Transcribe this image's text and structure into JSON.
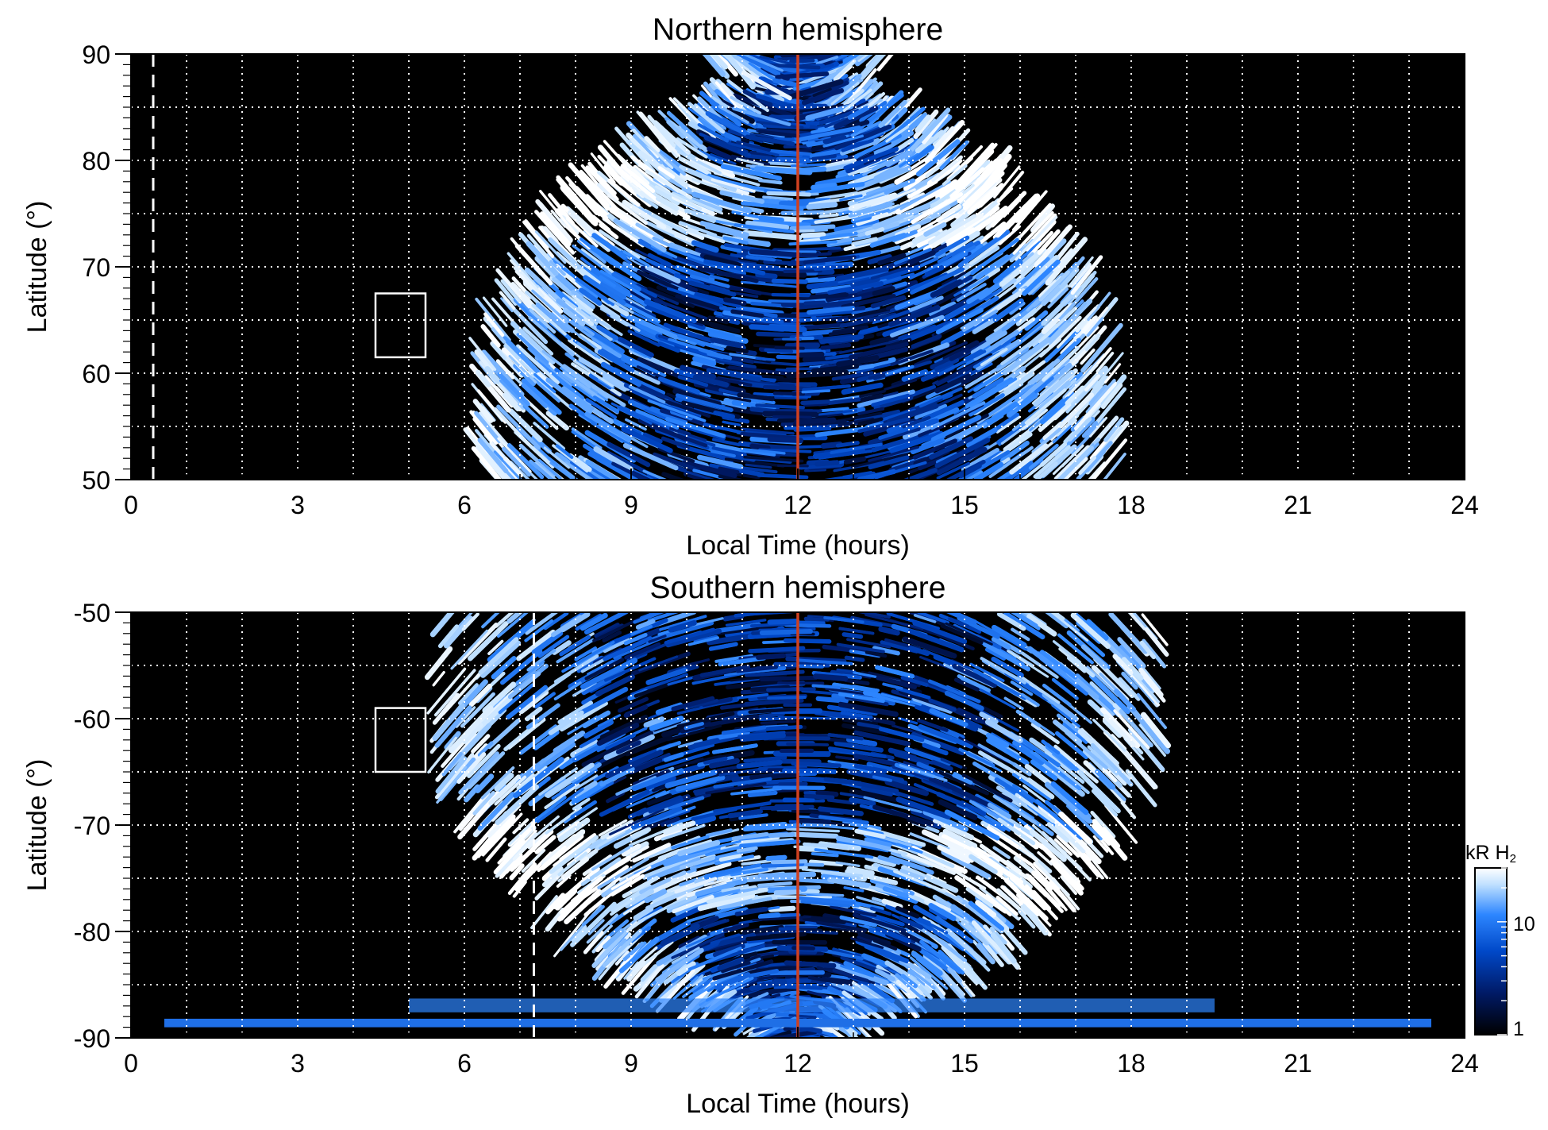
{
  "chart_data": [
    {
      "type": "heatmap",
      "title": "Northern hemisphere",
      "xlabel": "Local Time (hours)",
      "ylabel": "Latitude (°)",
      "xlim": [
        0,
        24
      ],
      "ylim": [
        50,
        90
      ],
      "xticks": [
        "0",
        "3",
        "6",
        "9",
        "12",
        "15",
        "18",
        "21",
        "24"
      ],
      "yticks": [
        "50",
        "60",
        "70",
        "80",
        "90"
      ],
      "grid": true,
      "background": "#000000",
      "noon_line": {
        "x": 12,
        "color": "#d04020"
      },
      "dashed_line": {
        "x": 0.4
      },
      "box": {
        "x": [
          4.4,
          5.3
        ],
        "y": [
          61.5,
          67.5
        ]
      },
      "emission_region": {
        "lt_min": 6.4,
        "lt_max": 17.8,
        "lat_min": 50,
        "lat_max": 87.5
      },
      "auroral_oval": {
        "lat_range": [
          72,
          80
        ],
        "center_lt": 12
      }
    },
    {
      "type": "heatmap",
      "title": "Southern hemisphere",
      "xlabel": "Local Time (hours)",
      "ylabel": "Latitude (°)",
      "xlim": [
        0,
        24
      ],
      "ylim": [
        -90,
        -50
      ],
      "xticks": [
        "0",
        "3",
        "6",
        "9",
        "12",
        "15",
        "18",
        "21",
        "24"
      ],
      "yticks": [
        "-90",
        "-80",
        "-70",
        "-60",
        "-50"
      ],
      "grid": true,
      "background": "#000000",
      "noon_line": {
        "x": 12,
        "color": "#d04020"
      },
      "dashed_line": {
        "x": 7.25
      },
      "box": {
        "x": [
          4.4,
          5.3
        ],
        "y": [
          -65,
          -59
        ]
      },
      "emission_region": {
        "lt_min": 5.8,
        "lt_max": 18.8,
        "lat_min": -89,
        "lat_max": -50
      },
      "auroral_oval": {
        "lat_range": [
          -78,
          -70
        ],
        "center_lt": 12
      }
    }
  ],
  "colorbar": {
    "title": "kR H",
    "subscript": "2",
    "ticks": [
      "10",
      "1"
    ],
    "scale": "log",
    "colors": [
      "#000000",
      "#001a66",
      "#0048c8",
      "#2d86ff",
      "#bfe0ff",
      "#ffffff"
    ]
  }
}
